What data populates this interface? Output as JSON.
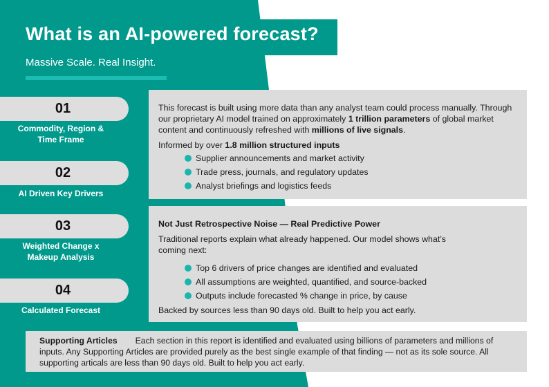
{
  "colors": {
    "teal": "#00998c",
    "accent": "#1cbcb2",
    "panel": "#dcdcdc",
    "bullet": "#1bb5ae"
  },
  "header": {
    "title": "What is an AI-powered forecast?",
    "subtitle": "Massive Scale. Real Insight."
  },
  "steps": [
    {
      "number": "01",
      "label_line1": "Commodity, Region &",
      "label_line2": "Time Frame"
    },
    {
      "number": "02",
      "label_line1": "AI Driven Key Drivers",
      "label_line2": ""
    },
    {
      "number": "03",
      "label_line1": "Weighted Change x",
      "label_line2": "Makeup Analysis"
    },
    {
      "number": "04",
      "label_line1": "Calculated Forecast",
      "label_line2": ""
    }
  ],
  "panel1": {
    "intro_a": "This forecast is built using more data than any analyst team could process manually. Through our proprietary AI model trained on approximately ",
    "intro_bold1": "1 trillion parameters",
    "intro_b": " of global market content and continuously refreshed with ",
    "intro_bold2": "millions of live signals",
    "intro_c": ".",
    "inputs_a": "Informed by over ",
    "inputs_bold": "1.8 million structured inputs",
    "bullets": [
      "Supplier announcements and market activity",
      "Trade press, journals, and regulatory updates",
      "Analyst briefings and logistics feeds"
    ]
  },
  "panel2": {
    "heading": "Not Just Retrospective Noise — Real Predictive Power",
    "intro": "Traditional reports explain what already happened. Our model shows what’s coming next:",
    "bullets": [
      "Top 6 drivers of price changes are identified and evaluated",
      "All assumptions are weighted, quantified, and source-backed",
      "Outputs include forecasted % change in price, by cause"
    ],
    "footer": "Backed by sources less than 90 days old. Built to help you act early."
  },
  "supporting": {
    "heading": "Supporting Articles",
    "text": "Each section in this report is identified and evaluated using billions of parameters and millions of inputs. Any Supporting Articles are provided purely as the best single example of that finding — not as its sole source. All supporting articals are less than 90 days old. Built to help you act early."
  }
}
